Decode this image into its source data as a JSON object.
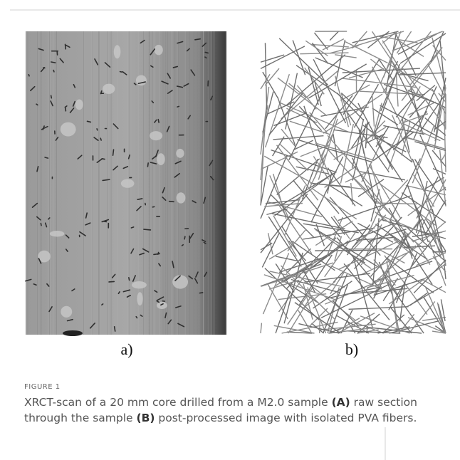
{
  "figure": {
    "panels": [
      {
        "label": "a)"
      },
      {
        "label": "b)"
      }
    ],
    "caption": {
      "label": "FIGURE 1",
      "parts": [
        "XRCT-scan of a 20 mm core drilled from a M2.0 sample ",
        "(A)",
        " raw section through the sample ",
        "(B)",
        " post-processed image with isolated PVA fibers."
      ]
    }
  }
}
